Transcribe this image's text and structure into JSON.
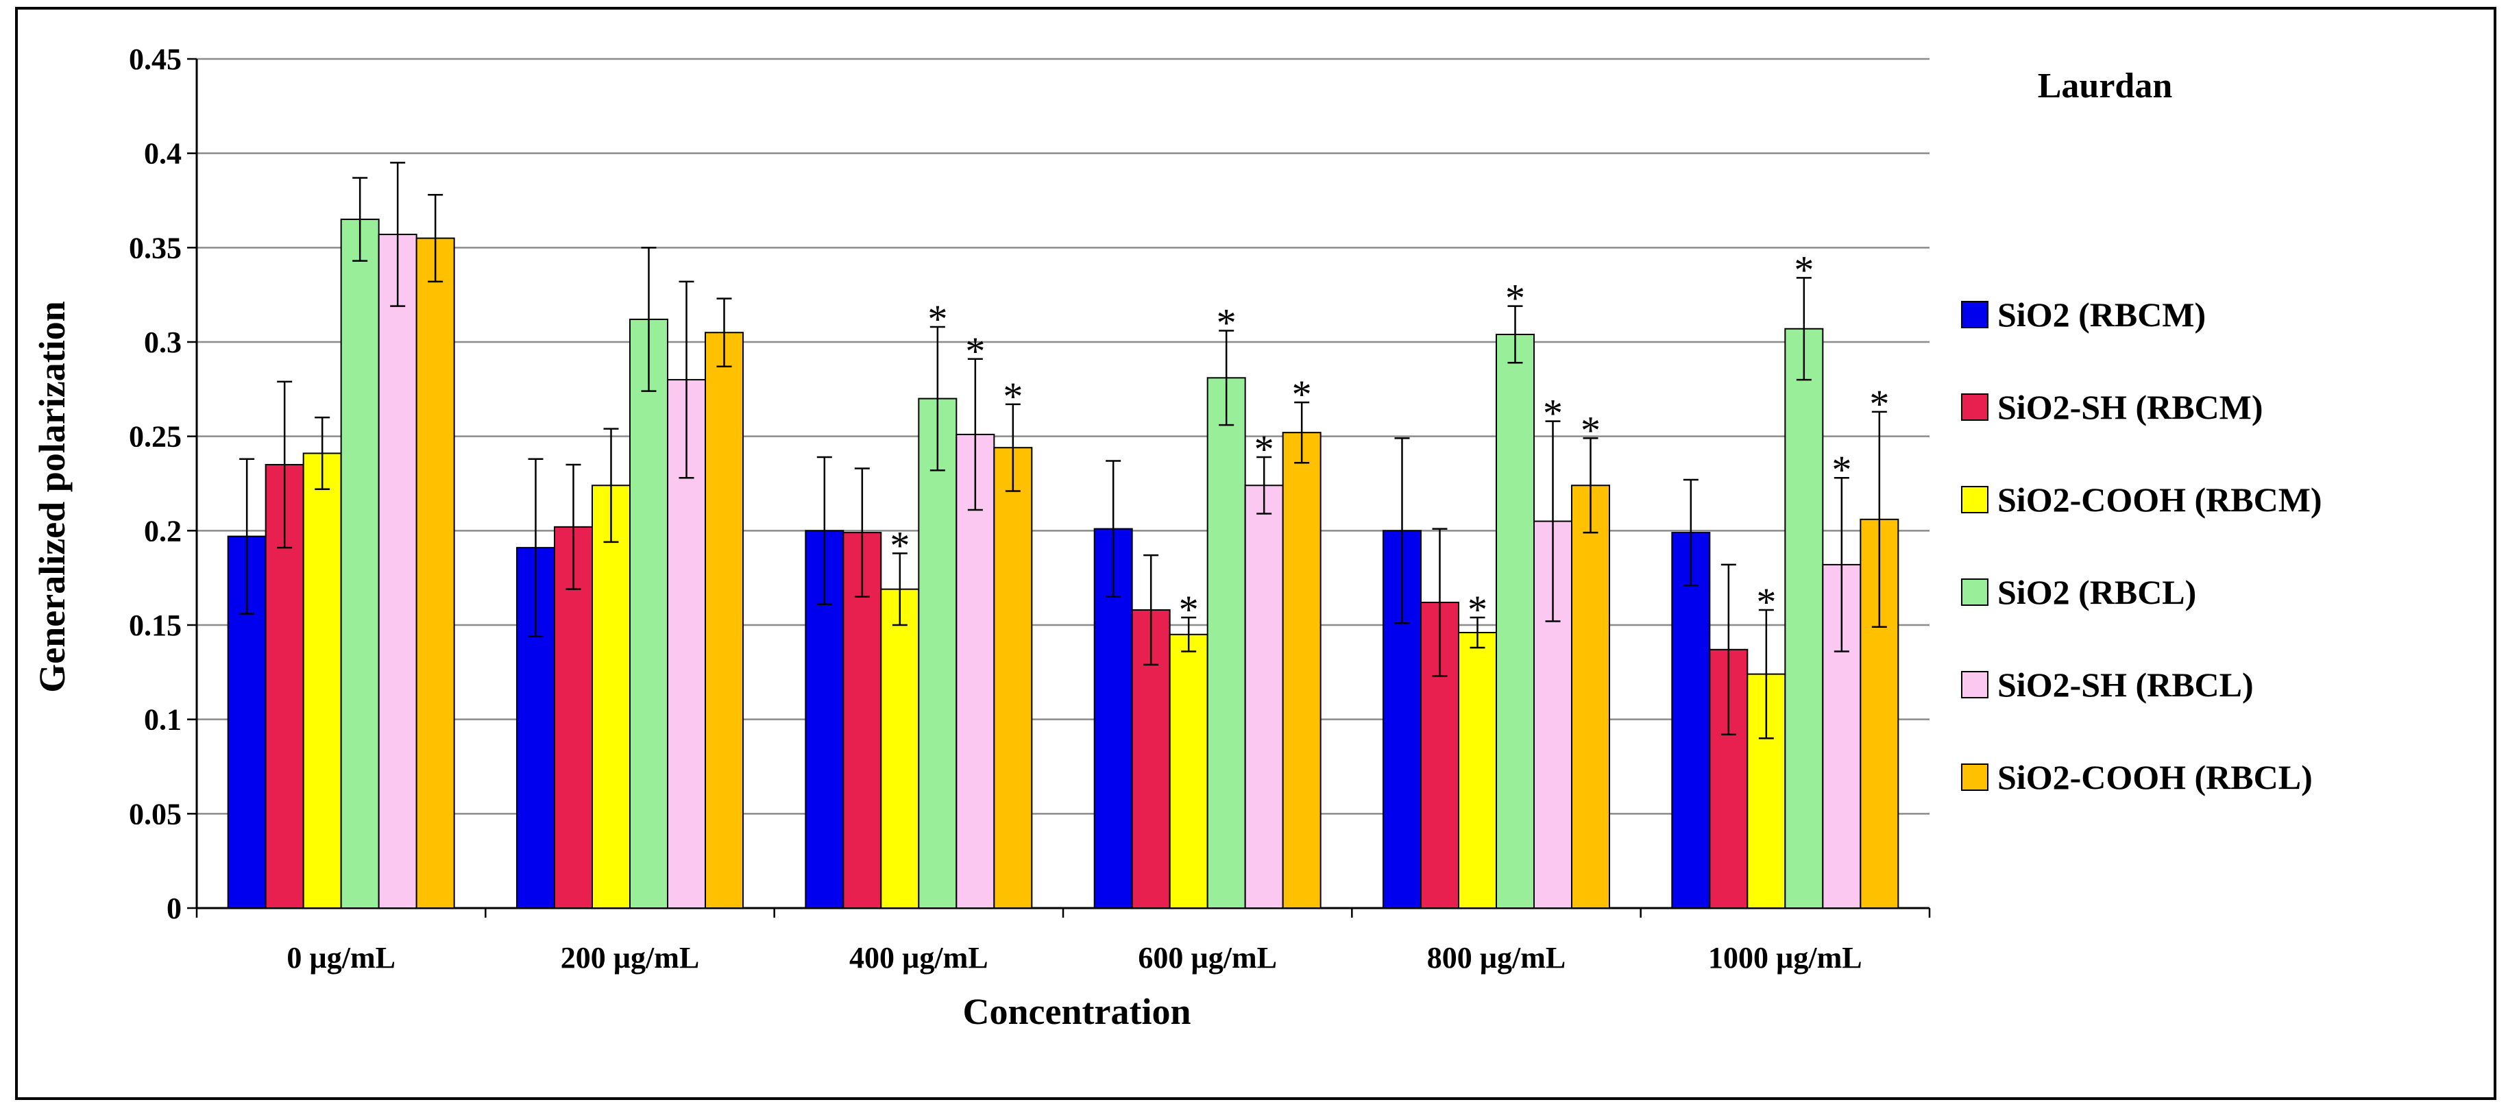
{
  "chart_data": {
    "type": "bar",
    "title": "Laurdan",
    "xlabel": "Concentration",
    "ylabel": "Generalized polarization",
    "ylim": [
      0,
      0.45
    ],
    "yticks": [
      "0",
      "0.05",
      "0.1",
      "0.15",
      "0.2",
      "0.25",
      "0.3",
      "0.35",
      "0.4",
      "0.45"
    ],
    "grid": true,
    "legend_position": "right",
    "categories": [
      "0 µg/mL",
      "200 µg/mL",
      "400 µg/mL",
      "600 µg/mL",
      "800 µg/mL",
      "1000 µg/mL"
    ],
    "significance_marker": "*",
    "series": [
      {
        "name": "SiO2 (RBCM)",
        "color": "#0000ee",
        "values": [
          0.197,
          0.191,
          0.2,
          0.201,
          0.2,
          0.199
        ],
        "errors": [
          0.041,
          0.047,
          0.039,
          0.036,
          0.049,
          0.028
        ],
        "significant": [
          false,
          false,
          false,
          false,
          false,
          false
        ]
      },
      {
        "name": "SiO2-SH (RBCM)",
        "color": "#e8204f",
        "values": [
          0.235,
          0.202,
          0.199,
          0.158,
          0.162,
          0.137
        ],
        "errors": [
          0.044,
          0.033,
          0.034,
          0.029,
          0.039,
          0.045
        ],
        "significant": [
          false,
          false,
          false,
          false,
          false,
          false
        ]
      },
      {
        "name": "SiO2-COOH  (RBCM)",
        "color": "#ffff00",
        "values": [
          0.241,
          0.224,
          0.169,
          0.145,
          0.146,
          0.124
        ],
        "errors": [
          0.019,
          0.03,
          0.019,
          0.009,
          0.008,
          0.034
        ],
        "significant": [
          false,
          false,
          true,
          true,
          true,
          true
        ]
      },
      {
        "name": "SiO2 (RBCL)",
        "color": "#99ee99",
        "values": [
          0.365,
          0.312,
          0.27,
          0.281,
          0.304,
          0.307
        ],
        "errors": [
          0.022,
          0.038,
          0.038,
          0.025,
          0.015,
          0.027
        ],
        "significant": [
          false,
          false,
          true,
          true,
          true,
          true
        ]
      },
      {
        "name": "SiO2-SH (RBCL)",
        "color": "#fbc8f2",
        "values": [
          0.357,
          0.28,
          0.251,
          0.224,
          0.205,
          0.182
        ],
        "errors": [
          0.038,
          0.052,
          0.04,
          0.015,
          0.053,
          0.046
        ],
        "significant": [
          false,
          false,
          true,
          true,
          true,
          true
        ]
      },
      {
        "name": "SiO2-COOH  (RBCL)",
        "color": "#ffc000",
        "values": [
          0.355,
          0.305,
          0.244,
          0.252,
          0.224,
          0.206
        ],
        "errors": [
          0.023,
          0.018,
          0.023,
          0.016,
          0.025,
          0.057
        ],
        "significant": [
          false,
          false,
          true,
          true,
          true,
          true
        ]
      }
    ]
  }
}
